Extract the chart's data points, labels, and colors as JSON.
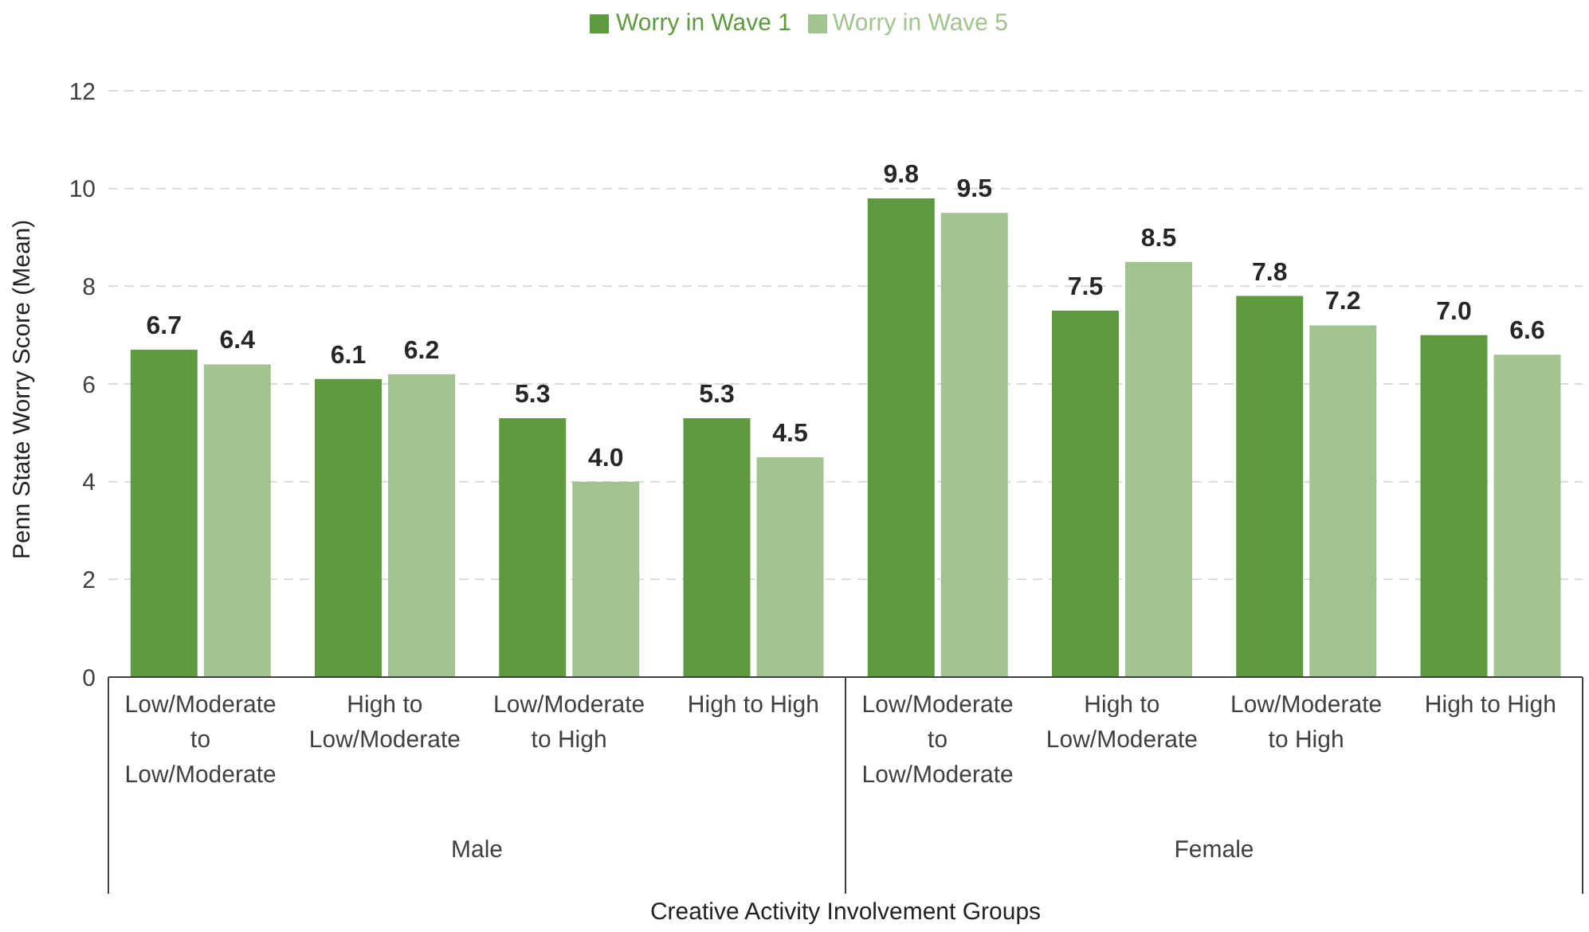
{
  "chart_data": {
    "type": "bar",
    "xlabel": "Creative Activity Involvement Groups",
    "ylabel": "Penn State Worry Score (Mean)",
    "categories": [
      "Low/Moderate to Low/Moderate",
      "High to Low/Moderate",
      "Low/Moderate to High",
      "High to High",
      "Low/Moderate to Low/Moderate",
      "High to Low/Moderate",
      "Low/Moderate to High",
      "High to High"
    ],
    "series": [
      {
        "name": "Worry in Wave 1",
        "color": "#5e9b40",
        "values": [
          6.7,
          6.1,
          5.3,
          5.3,
          9.8,
          7.5,
          7.8,
          7.0
        ],
        "value_labels": [
          "6.7",
          "6.1",
          "5.3",
          "5.3",
          "9.8",
          "7.5",
          "7.8",
          "7.0"
        ]
      },
      {
        "name": "Worry in Wave 5",
        "color": "#a1c48f",
        "values": [
          6.4,
          6.2,
          4.0,
          4.5,
          9.5,
          8.5,
          7.2,
          6.6
        ],
        "value_labels": [
          "6.4",
          "6.2",
          "4.0",
          "4.5",
          "9.5",
          "8.5",
          "7.2",
          "6.6"
        ]
      }
    ],
    "annotations": [
      "Male",
      "Female"
    ],
    "ylim": [
      0,
      12
    ],
    "yticks": [
      0,
      2,
      4,
      6,
      8,
      10,
      12
    ],
    "grid": "y",
    "legend": "top"
  }
}
